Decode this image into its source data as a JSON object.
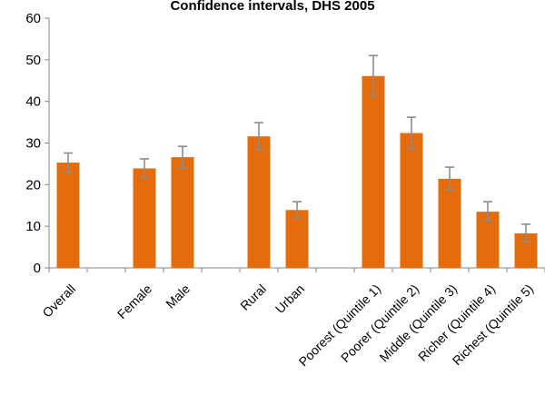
{
  "chart_data": {
    "type": "bar",
    "title": "Confidence intervals, DHS 2005",
    "xlabel": "",
    "ylabel": "",
    "ylim": [
      0,
      60
    ],
    "yticks": [
      0,
      10,
      20,
      30,
      40,
      50,
      60
    ],
    "grid": false,
    "legend": "none",
    "bar_color": "#e46c0a",
    "errorbar_color": "#8c8c8c",
    "axis_color": "#868686",
    "slots": [
      {
        "label": "Overall",
        "value": 25.3,
        "lo": 23.0,
        "hi": 27.6
      },
      {
        "label": "",
        "value": null
      },
      {
        "label": "Female",
        "value": 23.9,
        "lo": 21.7,
        "hi": 26.2
      },
      {
        "label": "Male",
        "value": 26.6,
        "lo": 24.1,
        "hi": 29.2
      },
      {
        "label": "",
        "value": null
      },
      {
        "label": "Rural",
        "value": 31.6,
        "lo": 28.3,
        "hi": 34.9
      },
      {
        "label": "Urban",
        "value": 13.9,
        "lo": 12.0,
        "hi": 15.9
      },
      {
        "label": "",
        "value": null
      },
      {
        "label": "Poorest (Quintile 1)",
        "value": 46.1,
        "lo": 41.3,
        "hi": 51.0
      },
      {
        "label": "Poorer (Quintile 2)",
        "value": 32.4,
        "lo": 28.7,
        "hi": 36.2
      },
      {
        "label": "Middle (Quintile 3)",
        "value": 21.4,
        "lo": 18.8,
        "hi": 24.2
      },
      {
        "label": "Richer (Quintile 4)",
        "value": 13.5,
        "lo": 11.3,
        "hi": 15.9
      },
      {
        "label": "Richest (Quintile 5)",
        "value": 8.3,
        "lo": 6.3,
        "hi": 10.5
      }
    ]
  }
}
